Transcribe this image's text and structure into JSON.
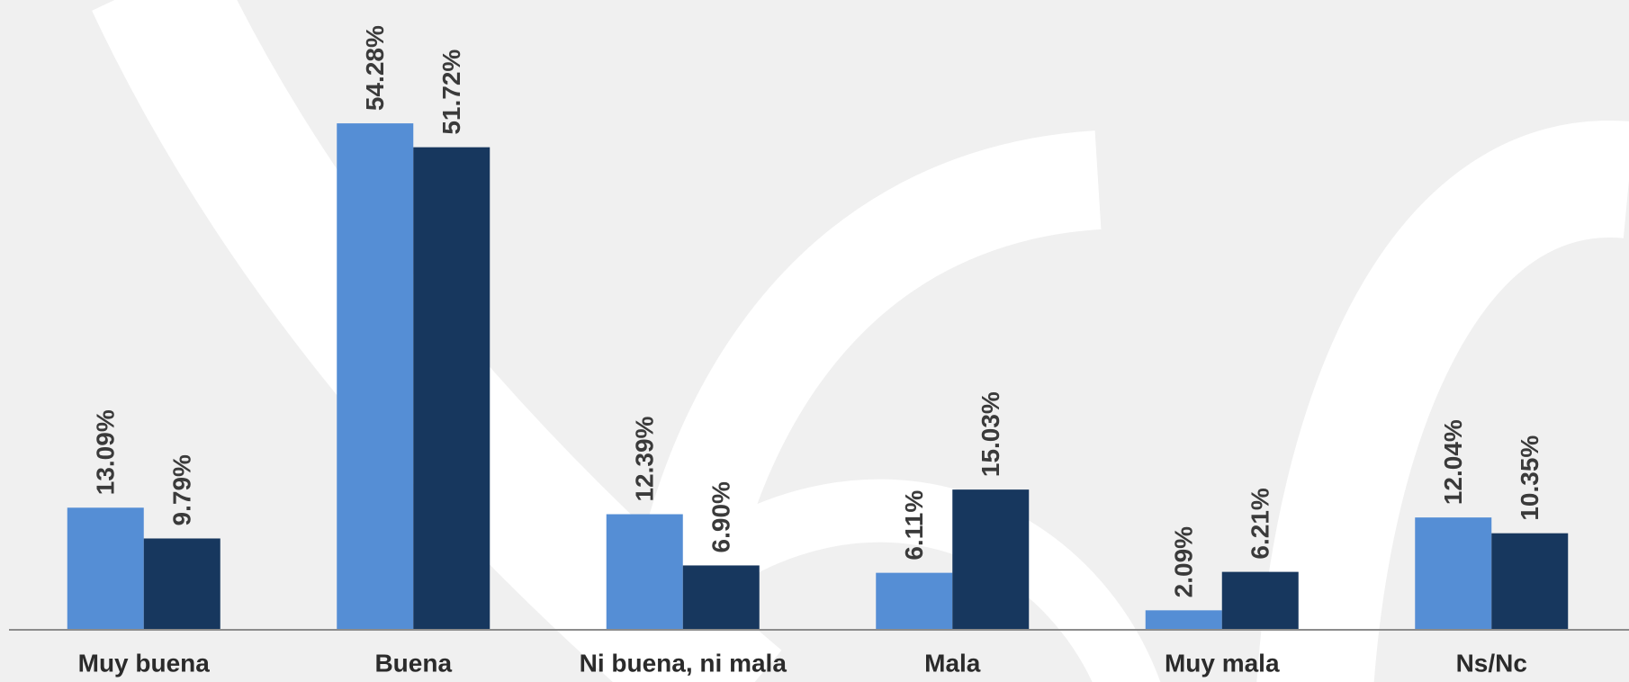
{
  "chart_data": {
    "type": "bar",
    "categories": [
      "Muy buena",
      "Buena",
      "Ni buena, ni mala",
      "Mala",
      "Muy mala",
      "Ns/Nc"
    ],
    "series": [
      {
        "color": "#558ed5",
        "values": [
          13.09,
          54.28,
          12.39,
          6.11,
          2.09,
          12.04
        ],
        "value_labels": [
          "13.09%",
          "54.28%",
          "12.39%",
          "6.11%",
          "2.09%",
          "12.04%"
        ]
      },
      {
        "color": "#17375e",
        "values": [
          9.79,
          51.72,
          6.9,
          15.03,
          6.21,
          10.35
        ],
        "value_labels": [
          "9.79%",
          "51.72%",
          "6.90%",
          "15.03%",
          "6.21%",
          "10.35%"
        ]
      }
    ],
    "ylim": [
      0,
      67.5
    ]
  }
}
